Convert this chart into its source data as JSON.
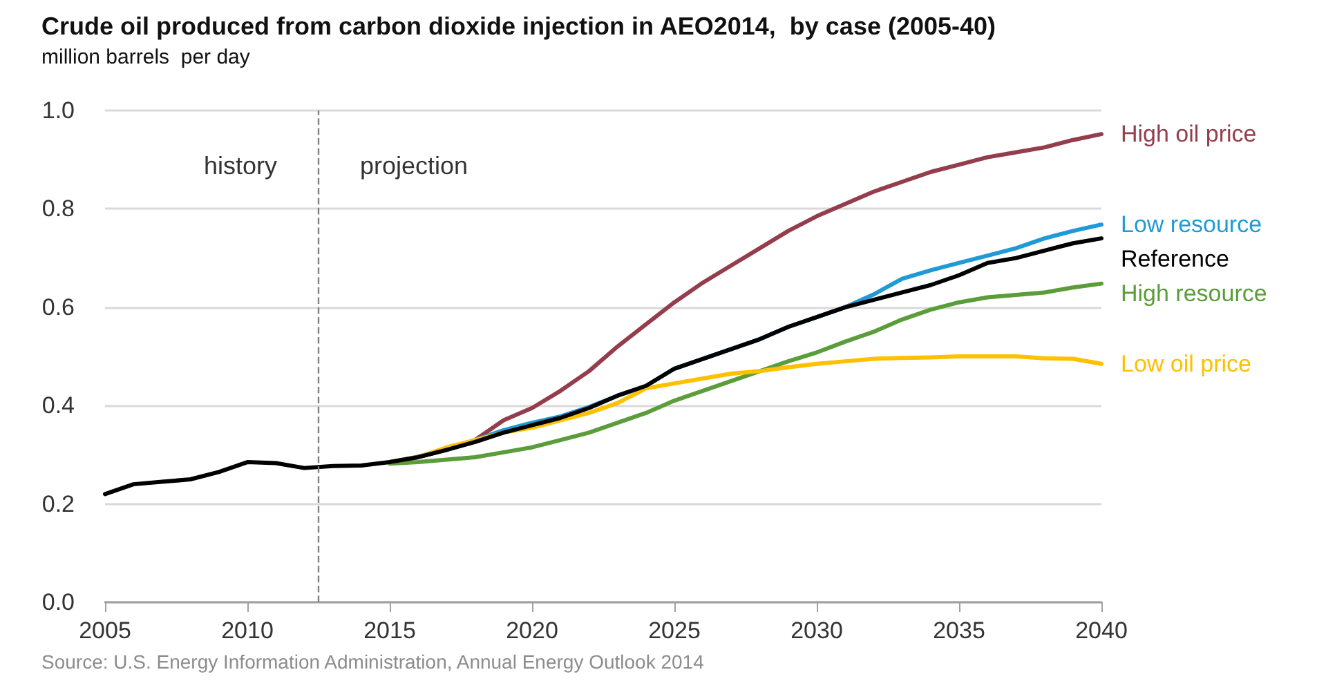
{
  "chart_data": {
    "type": "line",
    "title": "Crude oil produced from carbon dioxide injection in AEO2014,  by case (2005-40)",
    "ylabel": "million barrels  per day",
    "x": [
      2005,
      2006,
      2007,
      2008,
      2009,
      2010,
      2011,
      2012,
      2013,
      2014,
      2015,
      2016,
      2017,
      2018,
      2019,
      2020,
      2021,
      2022,
      2023,
      2024,
      2025,
      2026,
      2027,
      2028,
      2029,
      2030,
      2031,
      2032,
      2033,
      2034,
      2035,
      2036,
      2037,
      2038,
      2039,
      2040
    ],
    "series": [
      {
        "name": "High oil price",
        "color": "#943d4c",
        "values": [
          null,
          null,
          null,
          null,
          null,
          null,
          null,
          null,
          null,
          null,
          0.285,
          0.295,
          0.31,
          0.33,
          0.37,
          0.395,
          0.43,
          0.47,
          0.52,
          0.565,
          0.61,
          0.65,
          0.685,
          0.72,
          0.755,
          0.785,
          0.81,
          0.835,
          0.855,
          0.875,
          0.89,
          0.905,
          0.915,
          0.925,
          0.94,
          0.952
        ]
      },
      {
        "name": "Low resource",
        "color": "#1f9ad6",
        "values": [
          null,
          null,
          null,
          null,
          null,
          null,
          null,
          null,
          null,
          null,
          0.285,
          0.296,
          0.312,
          0.33,
          0.35,
          0.365,
          0.378,
          0.397,
          0.42,
          0.44,
          0.475,
          0.495,
          0.515,
          0.535,
          0.56,
          0.58,
          0.6,
          0.626,
          0.658,
          0.675,
          0.69,
          0.705,
          0.72,
          0.74,
          0.755,
          0.768
        ]
      },
      {
        "name": "Reference",
        "color": "#000000",
        "values": [
          0.22,
          0.24,
          0.245,
          0.25,
          0.265,
          0.285,
          0.283,
          0.273,
          0.277,
          0.278,
          0.285,
          0.295,
          0.31,
          0.326,
          0.345,
          0.36,
          0.375,
          0.395,
          0.42,
          0.44,
          0.475,
          0.495,
          0.515,
          0.535,
          0.56,
          0.58,
          0.6,
          0.615,
          0.63,
          0.645,
          0.665,
          0.69,
          0.7,
          0.715,
          0.73,
          0.74
        ]
      },
      {
        "name": "High resource",
        "color": "#5b9d3a",
        "values": [
          null,
          null,
          null,
          null,
          null,
          null,
          null,
          null,
          null,
          null,
          0.282,
          0.285,
          0.29,
          0.295,
          0.305,
          0.315,
          0.33,
          0.345,
          0.365,
          0.385,
          0.41,
          0.43,
          0.45,
          0.47,
          0.49,
          0.508,
          0.53,
          0.55,
          0.575,
          0.595,
          0.61,
          0.62,
          0.625,
          0.63,
          0.64,
          0.648
        ]
      },
      {
        "name": "Low oil price",
        "color": "#ffc000",
        "values": [
          null,
          null,
          null,
          null,
          null,
          null,
          null,
          null,
          null,
          null,
          0.285,
          0.295,
          0.315,
          0.33,
          0.345,
          0.355,
          0.37,
          0.385,
          0.405,
          0.435,
          0.445,
          0.455,
          0.465,
          0.47,
          0.478,
          0.485,
          0.49,
          0.495,
          0.497,
          0.498,
          0.5,
          0.5,
          0.5,
          0.496,
          0.495,
          0.485
        ]
      }
    ],
    "xlim": [
      2005,
      2040
    ],
    "xticks": [
      2005,
      2010,
      2015,
      2020,
      2025,
      2030,
      2035,
      2040
    ],
    "ylim": [
      0,
      1
    ],
    "yticks": [
      {
        "value": 0,
        "label": "0.0"
      },
      {
        "value": 0.2,
        "label": "0.2"
      },
      {
        "value": 0.4,
        "label": "0.4"
      },
      {
        "value": 0.6,
        "label": "0.6"
      },
      {
        "value": 0.8,
        "label": "0.8"
      },
      {
        "value": 1,
        "label": "1.0"
      }
    ],
    "grid": "y",
    "legend": false,
    "marker": "none",
    "line_style": "solid",
    "ref_lines": [
      {
        "axis": "x",
        "value": 2012.5,
        "color": "#808080",
        "line_style": "dashed"
      }
    ],
    "annotations": [
      "history",
      "projection",
      "Source: U.S. Energy Information Administration, Annual Energy Outlook 2014"
    ]
  }
}
